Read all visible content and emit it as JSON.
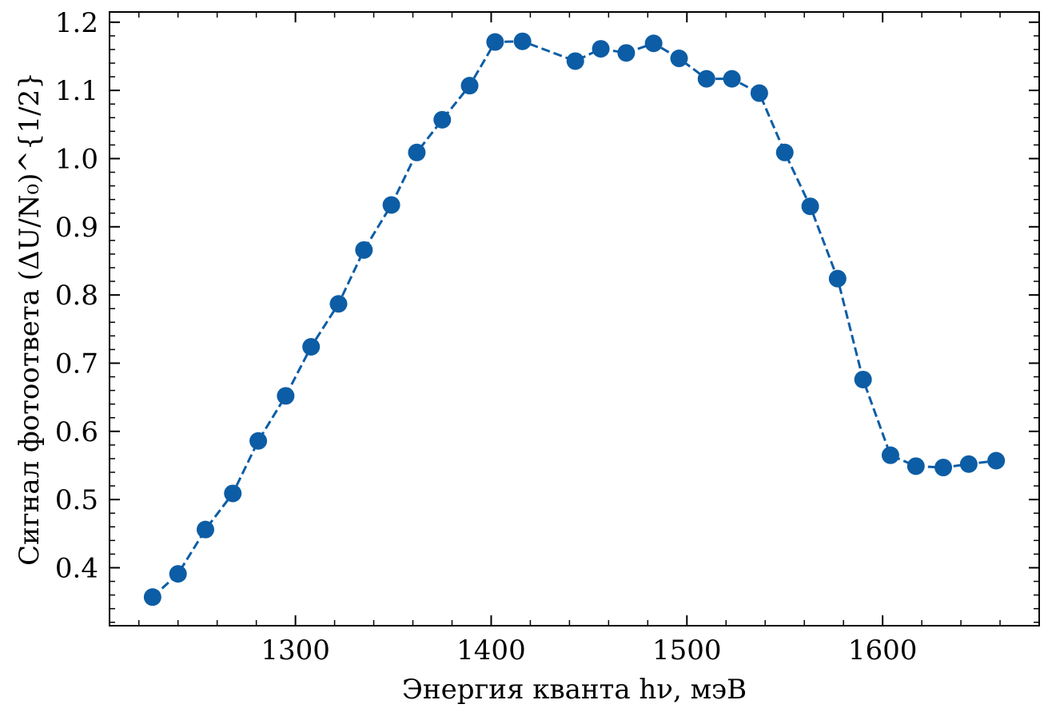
{
  "chart_data": {
    "type": "line",
    "title": "",
    "xlabel": "Энергия кванта hν, мэВ",
    "ylabel": "Сигнал фотоответа (ΔU/N₀)^{1/2}",
    "xlim": [
      1205,
      1680
    ],
    "ylim": [
      0.315,
      1.215
    ],
    "x_ticks": [
      1300,
      1400,
      1500,
      1600
    ],
    "x_tick_labels": [
      "1300",
      "1400",
      "1500",
      "1600"
    ],
    "y_ticks": [
      0.4,
      0.5,
      0.6,
      0.7,
      0.8,
      0.9,
      1.0,
      1.1,
      1.2
    ],
    "y_tick_labels": [
      "0.4",
      "0.5",
      "0.6",
      "0.7",
      "0.8",
      "0.9",
      "1.0",
      "1.1",
      "1.2"
    ],
    "grid": false,
    "line_style": "dashed",
    "marker": "circle",
    "color": "#0c5da5",
    "series": [
      {
        "x": [
          1227,
          1240,
          1254,
          1268,
          1281,
          1295,
          1308,
          1322,
          1335,
          1349,
          1362,
          1375,
          1389,
          1402,
          1416,
          1443,
          1456,
          1469,
          1483,
          1496,
          1510,
          1523,
          1537,
          1550,
          1563,
          1577,
          1590,
          1604,
          1617,
          1631,
          1644,
          1658
        ],
        "y": [
          0.357,
          0.391,
          0.456,
          0.509,
          0.586,
          0.652,
          0.724,
          0.787,
          0.866,
          0.932,
          1.009,
          1.057,
          1.107,
          1.171,
          1.172,
          1.143,
          1.161,
          1.155,
          1.169,
          1.147,
          1.117,
          1.117,
          1.096,
          1.009,
          0.93,
          0.824,
          0.676,
          0.565,
          0.549,
          0.547,
          0.552,
          0.557
        ]
      }
    ]
  }
}
